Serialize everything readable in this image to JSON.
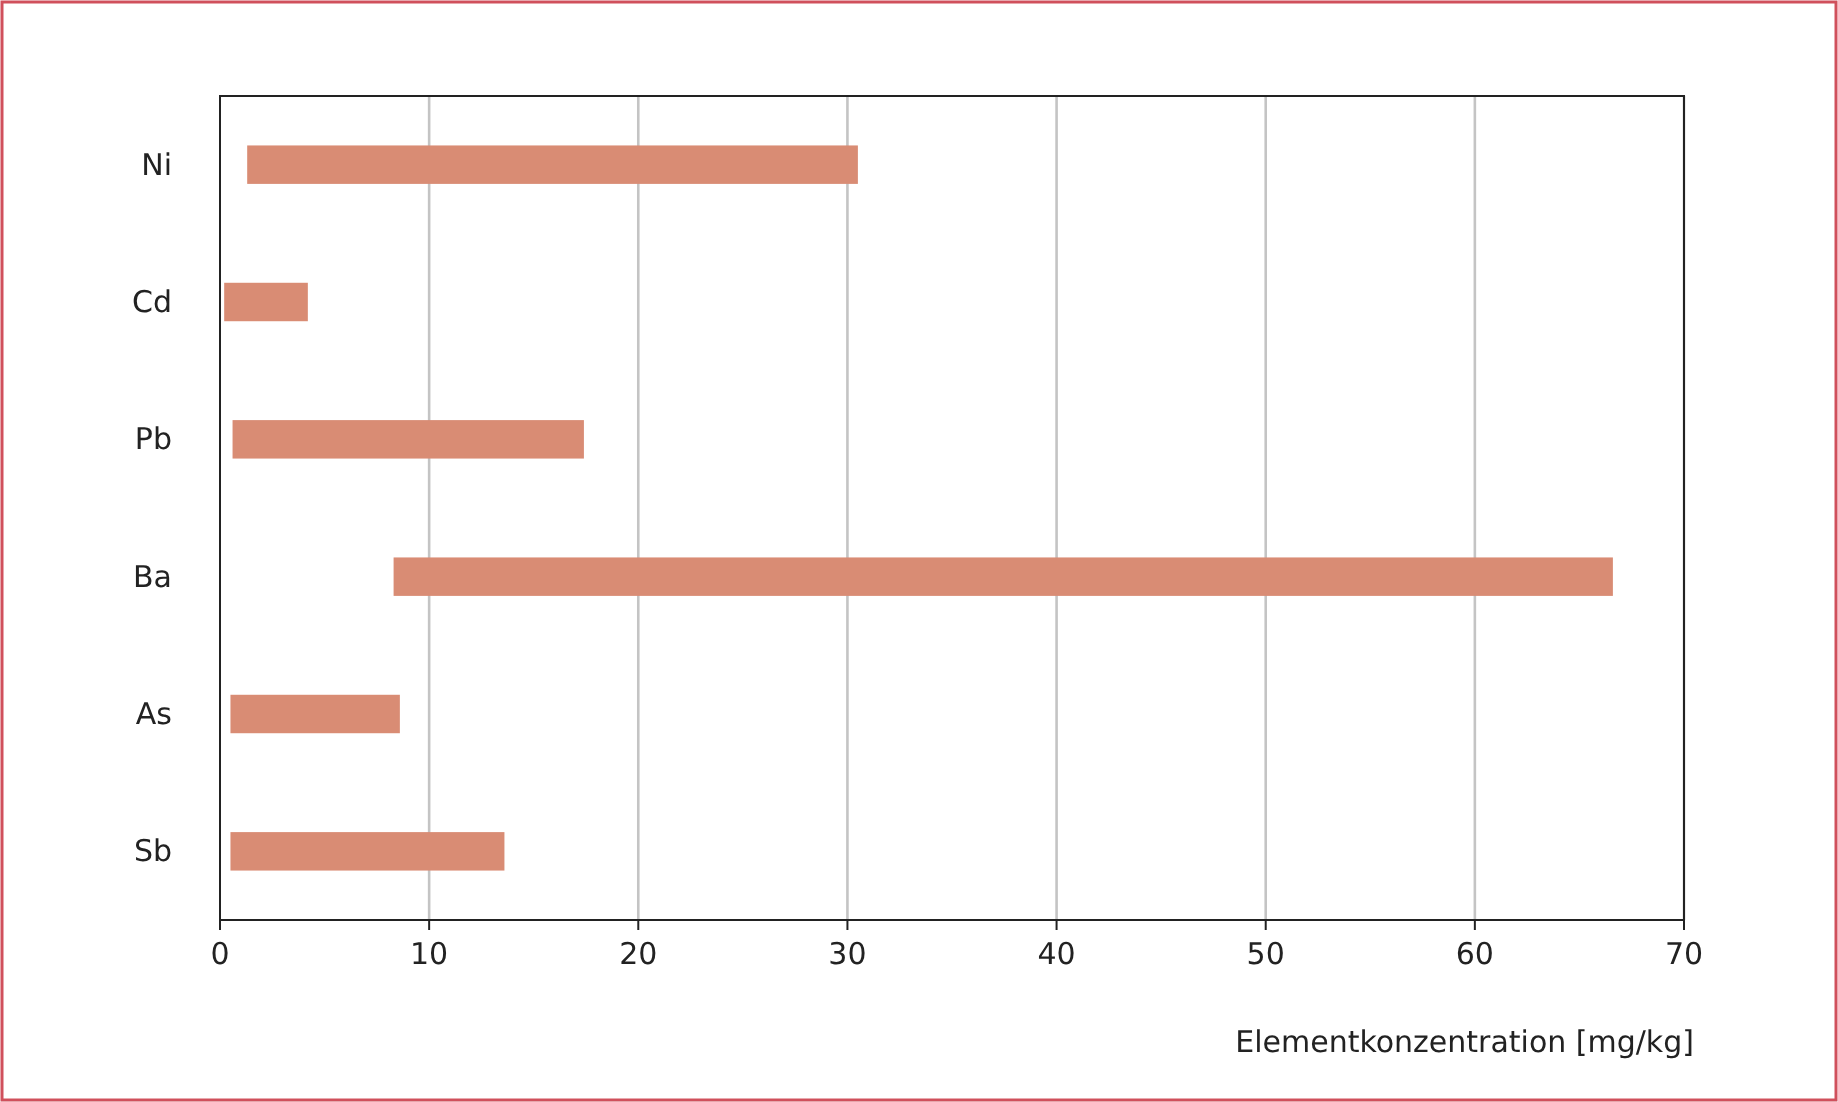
{
  "chart_data": {
    "type": "bar",
    "orientation": "horizontal",
    "categories": [
      "Ni",
      "Cd",
      "Pb",
      "Ba",
      "As",
      "Sb"
    ],
    "base": [
      1.3,
      0.2,
      0.6,
      8.3,
      0.5,
      0.5
    ],
    "values": [
      29.2,
      4.0,
      16.8,
      58.3,
      8.1,
      13.1
    ],
    "color": "#d98c74",
    "xlim": [
      0,
      70
    ],
    "xticks": [
      0,
      10,
      20,
      30,
      40,
      50,
      60,
      70
    ],
    "grid": "x",
    "xlabel": "Elementkonzentration [mg/kg]"
  }
}
